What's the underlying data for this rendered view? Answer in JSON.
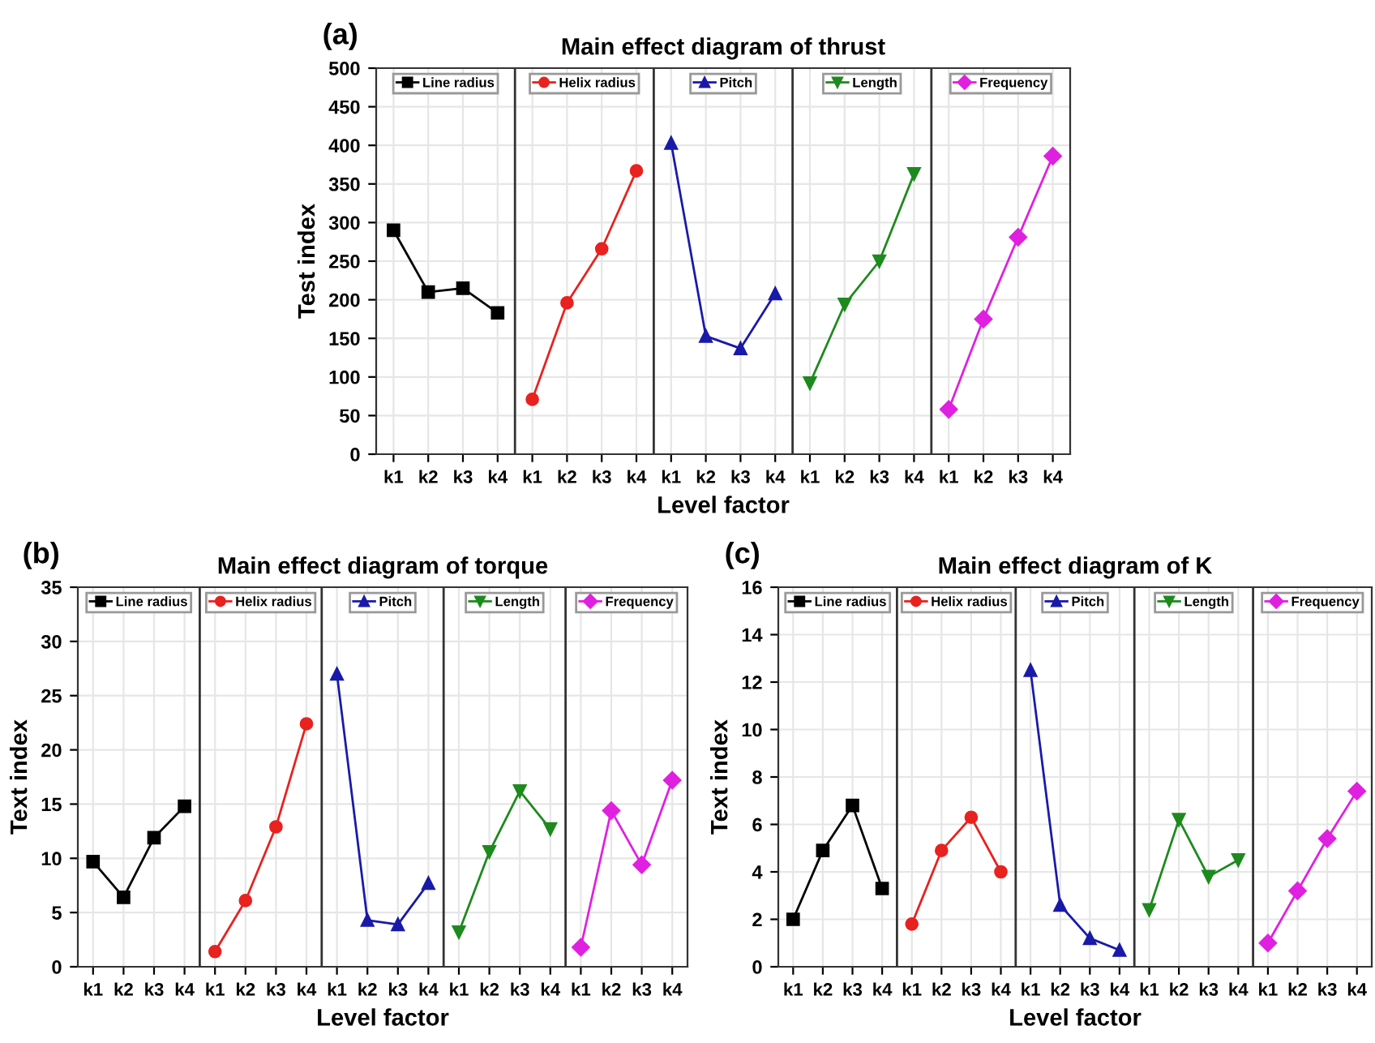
{
  "chart_data": [
    {
      "type": "line",
      "title": "Main effect diagram of thrust",
      "xlabel": "Level factor",
      "ylabel": "Test index",
      "annotations": [
        "(a)"
      ],
      "categories": [
        "k1",
        "k2",
        "k3",
        "k4",
        "k1",
        "k2",
        "k3",
        "k4",
        "k1",
        "k2",
        "k3",
        "k4",
        "k1",
        "k2",
        "k3",
        "k4",
        "k1",
        "k2",
        "k3",
        "k4"
      ],
      "ylim": [
        0,
        500
      ],
      "yticks": [
        0,
        50,
        100,
        150,
        200,
        250,
        300,
        350,
        400,
        450,
        500
      ],
      "grid": true,
      "legend": "top",
      "series": [
        {
          "name": "Line radius",
          "color": "#000000",
          "marker": "square",
          "values": [
            290,
            210,
            215,
            183,
            null,
            null,
            null,
            null,
            null,
            null,
            null,
            null,
            null,
            null,
            null,
            null,
            null,
            null,
            null,
            null
          ]
        },
        {
          "name": "Helix radius",
          "color": "#e8221f",
          "marker": "circle",
          "values": [
            null,
            null,
            null,
            null,
            71,
            196,
            266,
            367,
            null,
            null,
            null,
            null,
            null,
            null,
            null,
            null,
            null,
            null,
            null,
            null
          ]
        },
        {
          "name": "Pitch",
          "color": "#1a1aa8",
          "marker": "triangle",
          "values": [
            null,
            null,
            null,
            null,
            null,
            null,
            null,
            null,
            403,
            153,
            137,
            208,
            null,
            null,
            null,
            null,
            null,
            null,
            null,
            null
          ]
        },
        {
          "name": "Length",
          "color": "#1e8a1e",
          "marker": "triangle_down",
          "values": [
            null,
            null,
            null,
            null,
            null,
            null,
            null,
            null,
            null,
            null,
            null,
            null,
            92,
            194,
            250,
            363,
            null,
            null,
            null,
            null
          ]
        },
        {
          "name": "Frequency",
          "color": "#e020e0",
          "marker": "diamond",
          "values": [
            null,
            null,
            null,
            null,
            null,
            null,
            null,
            null,
            null,
            null,
            null,
            null,
            null,
            null,
            null,
            null,
            58,
            175,
            281,
            386
          ]
        }
      ]
    },
    {
      "type": "line",
      "title": "Main effect diagram of torque",
      "xlabel": "Level factor",
      "ylabel": "Text index",
      "annotations": [
        "(b)"
      ],
      "categories": [
        "k1",
        "k2",
        "k3",
        "k4",
        "k1",
        "k2",
        "k3",
        "k4",
        "k1",
        "k2",
        "k3",
        "k4",
        "k1",
        "k2",
        "k3",
        "k4",
        "k1",
        "k2",
        "k3",
        "k4"
      ],
      "ylim": [
        0,
        35
      ],
      "yticks": [
        0,
        5,
        10,
        15,
        20,
        25,
        30,
        35
      ],
      "grid": true,
      "legend": "top",
      "series": [
        {
          "name": "Line radius",
          "color": "#000000",
          "marker": "square",
          "values": [
            9.7,
            6.4,
            11.9,
            14.8,
            null,
            null,
            null,
            null,
            null,
            null,
            null,
            null,
            null,
            null,
            null,
            null,
            null,
            null,
            null,
            null
          ]
        },
        {
          "name": "Helix radius",
          "color": "#e8221f",
          "marker": "circle",
          "values": [
            null,
            null,
            null,
            null,
            1.4,
            6.1,
            12.9,
            22.4,
            null,
            null,
            null,
            null,
            null,
            null,
            null,
            null,
            null,
            null,
            null,
            null
          ]
        },
        {
          "name": "Pitch",
          "color": "#1a1aa8",
          "marker": "triangle",
          "values": [
            null,
            null,
            null,
            null,
            null,
            null,
            null,
            null,
            27.0,
            4.3,
            3.9,
            7.7,
            null,
            null,
            null,
            null,
            null,
            null,
            null,
            null
          ]
        },
        {
          "name": "Length",
          "color": "#1e8a1e",
          "marker": "triangle_down",
          "values": [
            null,
            null,
            null,
            null,
            null,
            null,
            null,
            null,
            null,
            null,
            null,
            null,
            3.2,
            10.6,
            16.2,
            12.7,
            null,
            null,
            null,
            null
          ]
        },
        {
          "name": "Frequency",
          "color": "#e020e0",
          "marker": "diamond",
          "values": [
            null,
            null,
            null,
            null,
            null,
            null,
            null,
            null,
            null,
            null,
            null,
            null,
            null,
            null,
            null,
            null,
            1.8,
            14.4,
            9.4,
            17.2
          ]
        }
      ]
    },
    {
      "type": "line",
      "title": "Main effect diagram of K",
      "xlabel": "Level factor",
      "ylabel": "Text index",
      "annotations": [
        "(c)"
      ],
      "categories": [
        "k1",
        "k2",
        "k3",
        "k4",
        "k1",
        "k2",
        "k3",
        "k4",
        "k1",
        "k2",
        "k3",
        "k4",
        "k1",
        "k2",
        "k3",
        "k4",
        "k1",
        "k2",
        "k3",
        "k4"
      ],
      "ylim": [
        0,
        16
      ],
      "yticks": [
        0,
        2,
        4,
        6,
        8,
        10,
        12,
        14,
        16
      ],
      "grid": true,
      "legend": "top",
      "series": [
        {
          "name": "Line radius",
          "color": "#000000",
          "marker": "square",
          "values": [
            2.0,
            4.9,
            6.8,
            3.3,
            null,
            null,
            null,
            null,
            null,
            null,
            null,
            null,
            null,
            null,
            null,
            null,
            null,
            null,
            null,
            null
          ]
        },
        {
          "name": "Helix radius",
          "color": "#e8221f",
          "marker": "circle",
          "values": [
            null,
            null,
            null,
            null,
            1.8,
            4.9,
            6.3,
            4.0,
            null,
            null,
            null,
            null,
            null,
            null,
            null,
            null,
            null,
            null,
            null,
            null
          ]
        },
        {
          "name": "Pitch",
          "color": "#1a1aa8",
          "marker": "triangle",
          "values": [
            null,
            null,
            null,
            null,
            null,
            null,
            null,
            null,
            12.5,
            2.6,
            1.2,
            0.7,
            null,
            null,
            null,
            null,
            null,
            null,
            null,
            null
          ]
        },
        {
          "name": "Length",
          "color": "#1e8a1e",
          "marker": "triangle_down",
          "values": [
            null,
            null,
            null,
            null,
            null,
            null,
            null,
            null,
            null,
            null,
            null,
            null,
            2.4,
            6.2,
            3.8,
            4.5,
            null,
            null,
            null,
            null
          ]
        },
        {
          "name": "Frequency",
          "color": "#e020e0",
          "marker": "diamond",
          "values": [
            null,
            null,
            null,
            null,
            null,
            null,
            null,
            null,
            null,
            null,
            null,
            null,
            null,
            null,
            null,
            null,
            1.0,
            3.2,
            5.4,
            7.4
          ]
        }
      ]
    }
  ]
}
